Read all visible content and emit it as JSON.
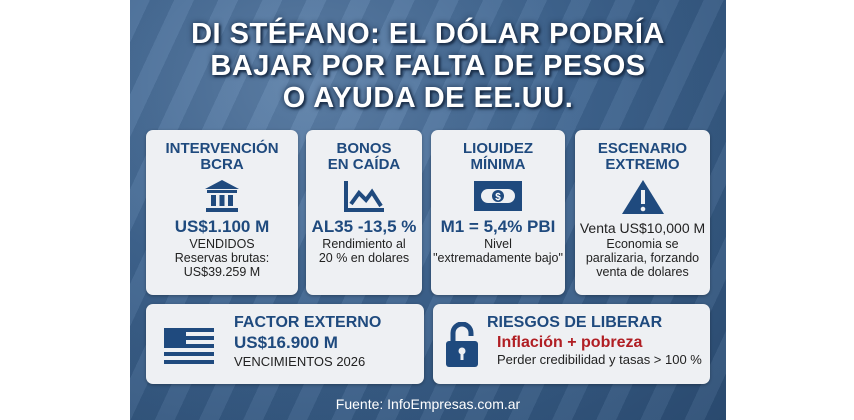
{
  "title": [
    "DI STÉFANO: EL DÓLAR PODRÍA",
    "BAJAR POR FALTA DE PESOS",
    "O AYUDA DE EE.UU."
  ],
  "cards": [
    {
      "heading": [
        "INTERVENCIÓN",
        "BCRA"
      ],
      "icon": "bank-icon",
      "value": "US$1.100 M",
      "lines": [
        "VENDIDOS",
        "Reservas brutas:",
        "US$39.259 M"
      ]
    },
    {
      "heading": [
        "BONOS",
        "EN CAÍDA"
      ],
      "icon": "chart-down-icon",
      "value": "AL35 -13,5 %",
      "lines": [
        "Rendimiento al",
        "20 % en dolares"
      ]
    },
    {
      "heading": [
        "LIOUIDEZ",
        "MÍNIMA"
      ],
      "icon": "banknote-icon",
      "value": "M1 = 5,4% PBI",
      "lines": [
        "Nivel",
        "\"extremadamente bajo\""
      ]
    },
    {
      "heading": [
        "ESCENARIO",
        "EXTREMO"
      ],
      "icon": "warning-icon",
      "value": "Venta US$10,000 M",
      "lines": [
        "Economia se",
        "paralizaria, forzando",
        "venta de dolares"
      ]
    }
  ],
  "external": {
    "heading": "FACTOR EXTERNO",
    "value": "US$16.900 M",
    "line": "VENCIMIENTOS 2026",
    "icon": "us-flag-icon"
  },
  "risks": {
    "heading": "RIESGOS DE LIBERAR",
    "highlight": "Inflación + pobreza",
    "line": "Perder credibilidad y tasas > 100 %",
    "icon": "unlocked-padlock-icon"
  },
  "footer": "Fuente: InfoEmpresas.com.ar",
  "colors": {
    "primary": "#1f4a7e",
    "alert": "#b01e23",
    "card": "#eef0f3"
  }
}
